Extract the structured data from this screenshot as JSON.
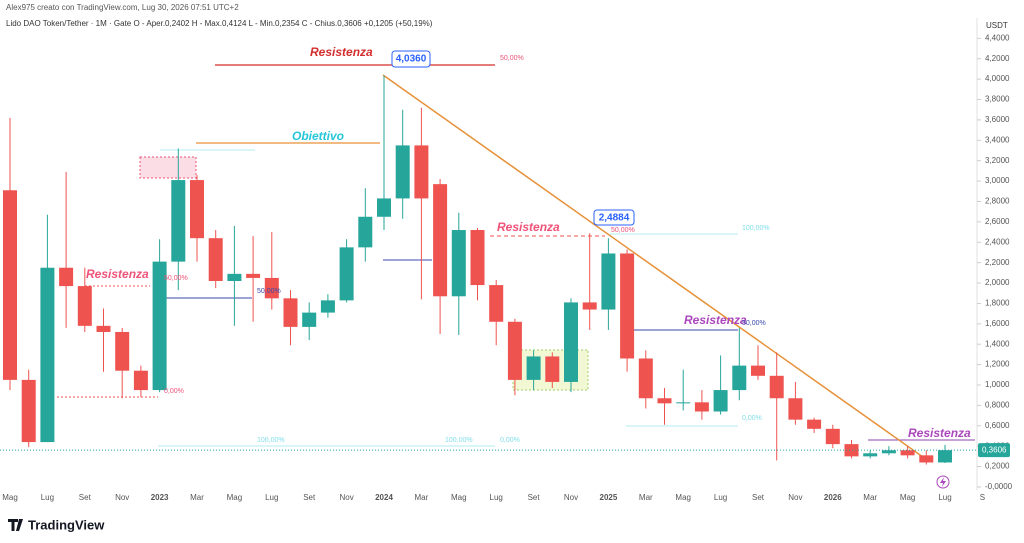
{
  "chart_data": {
    "type": "candlestick",
    "header": "Alex975 creato con TradingView.com, Lug 30, 2026 07:51 UTC+2",
    "legend": "Lido DAO Token/Tether · 1M · Gate  O - Aper.0,2402  H - Max.0,4124  L - Min.0,2354  C - Chius.0,3606  +0,1205 (+50,19%)",
    "currency": "USDT",
    "last_label": "0,3606",
    "brand": "TradingView",
    "up_color": "#26a69a",
    "down_color": "#ef5350",
    "grid": false,
    "categories": [
      "Mag",
      null,
      "Lug",
      null,
      "Set",
      null,
      "Nov",
      null,
      "2023",
      null,
      "Mar",
      null,
      "Mag",
      null,
      "Lug",
      null,
      "Set",
      null,
      "Nov",
      null,
      "2024",
      null,
      "Mar",
      null,
      "Mag",
      null,
      "Lug",
      null,
      "Set",
      null,
      "Nov",
      null,
      "2025",
      null,
      "Mar",
      null,
      "Mag",
      null,
      "Lug",
      null,
      "Set",
      null,
      "Nov",
      null,
      "2026",
      null,
      "Mar",
      null,
      "Mag",
      null,
      "Lug",
      null,
      "S"
    ],
    "open": [
      2.91,
      1.05,
      0.44,
      2.15,
      1.97,
      1.58,
      1.52,
      1.14,
      0.95,
      2.21,
      3.01,
      2.44,
      2.02,
      2.09,
      2.05,
      1.85,
      1.57,
      1.71,
      1.83,
      2.35,
      2.65,
      2.83,
      3.35,
      2.97,
      1.87,
      2.52,
      1.98,
      1.62,
      1.05,
      1.28,
      1.03,
      1.81,
      1.74,
      2.29,
      1.26,
      0.87,
      0.82,
      0.83,
      0.74,
      0.95,
      1.19,
      1.09,
      0.87,
      0.66,
      0.57,
      0.42,
      0.3,
      0.33,
      0.36,
      0.31,
      0.2402,
      null,
      null
    ],
    "high": [
      3.62,
      1.15,
      2.67,
      3.09,
      2.15,
      1.75,
      1.56,
      1.19,
      2.43,
      3.32,
      3.06,
      2.52,
      2.56,
      2.46,
      2.5,
      1.93,
      1.81,
      1.89,
      2.43,
      2.93,
      4.036,
      3.7,
      3.72,
      3.02,
      2.69,
      2.54,
      2.03,
      1.65,
      1.34,
      1.32,
      1.85,
      2.4884,
      2.44,
      2.33,
      1.34,
      0.97,
      1.15,
      0.95,
      1.29,
      1.56,
      1.39,
      1.32,
      1.03,
      0.68,
      0.61,
      0.46,
      0.36,
      0.4,
      0.4,
      0.36,
      0.4124,
      null,
      null
    ],
    "low": [
      0.95,
      0.39,
      0.44,
      1.56,
      1.52,
      1.13,
      0.87,
      0.88,
      0.93,
      1.93,
      2.21,
      1.95,
      1.58,
      1.62,
      1.74,
      1.39,
      1.44,
      1.66,
      1.81,
      2.21,
      2.52,
      2.63,
      1.84,
      1.5,
      1.49,
      1.83,
      1.39,
      0.9,
      0.95,
      0.97,
      0.93,
      1.54,
      1.54,
      1.13,
      0.77,
      0.61,
      0.75,
      0.66,
      0.71,
      0.85,
      1.05,
      0.26,
      0.61,
      0.53,
      0.38,
      0.28,
      0.28,
      0.31,
      0.28,
      0.22,
      0.2354,
      null,
      null
    ],
    "close": [
      1.05,
      0.44,
      2.15,
      1.97,
      1.58,
      1.52,
      1.14,
      0.95,
      2.21,
      3.01,
      2.44,
      2.02,
      2.09,
      2.05,
      1.85,
      1.57,
      1.71,
      1.83,
      2.35,
      2.65,
      2.83,
      3.35,
      2.83,
      1.87,
      2.52,
      1.98,
      1.62,
      1.05,
      1.28,
      1.03,
      1.81,
      1.74,
      2.29,
      1.26,
      0.87,
      0.82,
      0.83,
      0.74,
      0.95,
      1.19,
      1.09,
      0.87,
      0.66,
      0.57,
      0.42,
      0.3,
      0.33,
      0.36,
      0.31,
      0.24,
      0.3606,
      null,
      null
    ],
    "ylim": [
      -0.03,
      4.58
    ],
    "yticks": [
      {
        "value": 0,
        "label": "-0,0000"
      },
      {
        "value": 0.2,
        "label": "0,2000"
      },
      {
        "value": 0.4,
        "label": "0,4000"
      },
      {
        "value": 0.6,
        "label": "0,6000"
      },
      {
        "value": 0.8,
        "label": "0,8000"
      },
      {
        "value": 1,
        "label": "1,0000"
      },
      {
        "value": 1.2,
        "label": "1,2000"
      },
      {
        "value": 1.4,
        "label": "1,4000"
      },
      {
        "value": 1.6,
        "label": "1,6000"
      },
      {
        "value": 1.8,
        "label": "1,8000"
      },
      {
        "value": 2,
        "label": "2,0000"
      },
      {
        "value": 2.2,
        "label": "2,2000"
      },
      {
        "value": 2.4,
        "label": "2,4000"
      },
      {
        "value": 2.6,
        "label": "2,6000"
      },
      {
        "value": 2.8,
        "label": "2,8000"
      },
      {
        "value": 3,
        "label": "3,0000"
      },
      {
        "value": 3.2,
        "label": "3,2000"
      },
      {
        "value": 3.4,
        "label": "3,4000"
      },
      {
        "value": 3.6,
        "label": "3,6000"
      },
      {
        "value": 3.8,
        "label": "3,8000"
      },
      {
        "value": 4,
        "label": "4,0000"
      },
      {
        "value": 4.2,
        "label": "4,2000"
      },
      {
        "value": 4.4,
        "label": "4,4000"
      }
    ],
    "annotations": [
      "Resistenza",
      "4,0360",
      "50,00%",
      "Obiettivo",
      "Resistenza",
      "2,4884",
      "50,00%",
      "Resistenza",
      "50,00%",
      "50,00%",
      "0,00%",
      "100,00%",
      "100,00%",
      "0,00%",
      "Resistenza",
      "50,00%",
      "100,00%",
      "0,00%",
      "Resistenza"
    ]
  }
}
